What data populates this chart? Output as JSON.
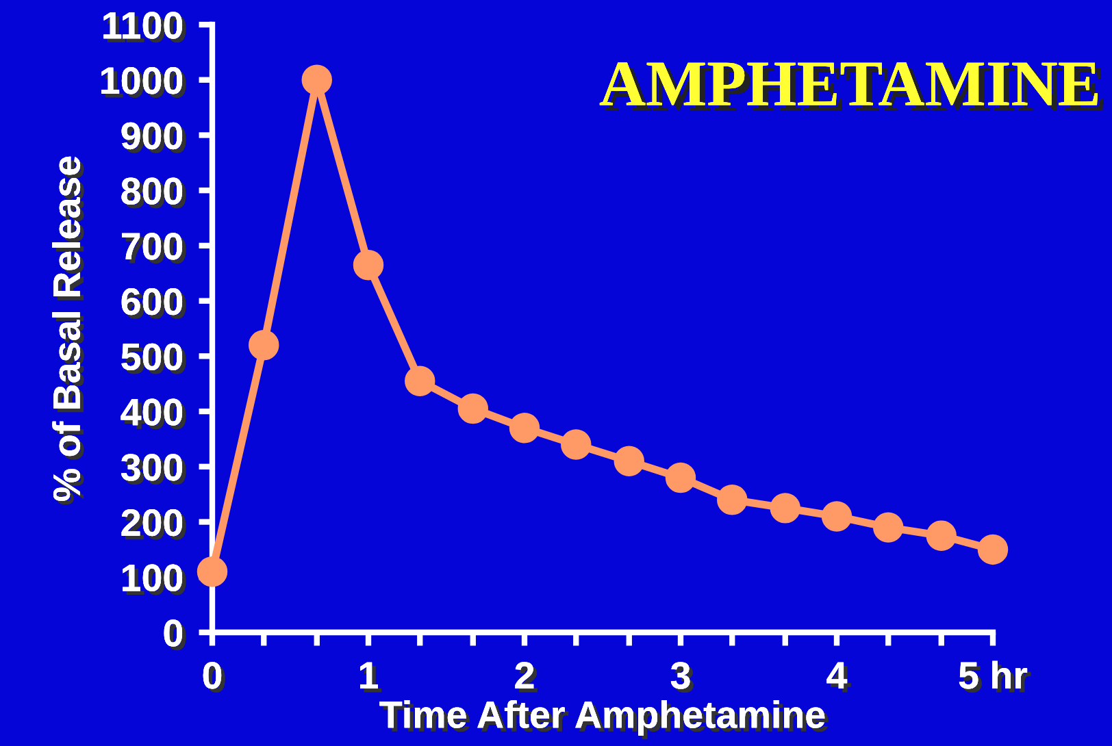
{
  "chart_data": {
    "type": "line",
    "title": "AMPHETAMINE",
    "xlabel": "Time After Amphetamine",
    "ylabel": "% of Basal Release",
    "x": [
      0,
      0.33,
      0.67,
      1,
      1.33,
      1.67,
      2,
      2.33,
      2.67,
      3,
      3.33,
      3.67,
      4,
      4.33,
      4.67,
      5
    ],
    "series": [
      {
        "color": "#ff9966",
        "values": [
          110,
          520,
          1000,
          665,
          455,
          405,
          370,
          340,
          310,
          280,
          240,
          225,
          210,
          190,
          175,
          150
        ]
      }
    ],
    "xlim": [
      0,
      5
    ],
    "xticks": [
      0,
      {
        "value": 0.33,
        "label": null
      },
      {
        "value": 0.67,
        "label": null
      },
      1,
      {
        "value": 1.33,
        "label": null
      },
      {
        "value": 1.67,
        "label": null
      },
      2,
      {
        "value": 2.33,
        "label": null
      },
      {
        "value": 2.67,
        "label": null
      },
      3,
      {
        "value": 3.33,
        "label": null
      },
      {
        "value": 3.67,
        "label": null
      },
      4,
      {
        "value": 4.33,
        "label": null
      },
      {
        "value": 4.67,
        "label": null
      },
      {
        "value": 5,
        "label": "5 hr"
      }
    ],
    "ylim": [
      0,
      1100
    ],
    "yticks": [
      0,
      100,
      200,
      300,
      400,
      500,
      600,
      700,
      800,
      900,
      1000,
      1100
    ],
    "grid": false,
    "legend": false,
    "marker": "circle",
    "line_style": "solid"
  }
}
